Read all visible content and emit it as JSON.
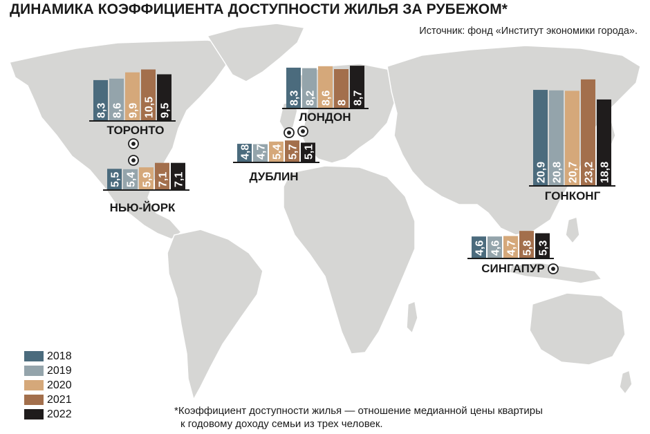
{
  "header": {
    "title": "ДИНАМИКА КОЭФФИЦИЕНТА ДОСТУПНОСТИ ЖИЛЬЯ ЗА РУБЕЖОМ*",
    "source": "Источник: фонд «Институт экономики города»."
  },
  "footnote": {
    "line1": "*Коэффициент доступности жилья — отношение медианной цены квартиры",
    "line2": "к годовому доходу семьи из трех человек."
  },
  "colors": {
    "2018": "#4b6b7d",
    "2019": "#94a4ab",
    "2020": "#d5a87a",
    "2021": "#a36f4c",
    "2022": "#1f1c1c",
    "map_land": "#d6d6d4",
    "map_border": "#ffffff",
    "marker": "#222222"
  },
  "legend": [
    {
      "year": "2018"
    },
    {
      "year": "2019"
    },
    {
      "year": "2020"
    },
    {
      "year": "2021"
    },
    {
      "year": "2022"
    }
  ],
  "chart_data": {
    "type": "bar",
    "series_names": [
      "2018",
      "2019",
      "2020",
      "2021",
      "2022"
    ],
    "cities": [
      {
        "name": "ТОРОНТО",
        "values": [
          8.3,
          8.6,
          9.9,
          10.5,
          9.5
        ],
        "labels": [
          "8,3",
          "8,6",
          "9,9",
          "10,5",
          "9,5"
        ]
      },
      {
        "name": "НЬЮ-ЙОРК",
        "values": [
          5.5,
          5.4,
          5.9,
          7.1,
          7.1
        ],
        "labels": [
          "5,5",
          "5,4",
          "5,9",
          "7,1",
          "7,1"
        ]
      },
      {
        "name": "ЛОНДОН",
        "values": [
          8.3,
          8.2,
          8.6,
          8,
          8.7
        ],
        "labels": [
          "8,3",
          "8,2",
          "8,6",
          "8",
          "8,7"
        ]
      },
      {
        "name": "ДУБЛИН",
        "values": [
          4.8,
          4.7,
          5.4,
          5.7,
          5.1
        ],
        "labels": [
          "4,8",
          "4,7",
          "5,4",
          "5,7",
          "5,1"
        ]
      },
      {
        "name": "ГОНКОНГ",
        "values": [
          20.9,
          20.8,
          20.7,
          23.2,
          18.8
        ],
        "labels": [
          "20,9",
          "20,8",
          "20,7",
          "23,2",
          "18,8"
        ]
      },
      {
        "name": "СИНГАПУР",
        "values": [
          4.6,
          4.6,
          4.7,
          5.8,
          5.3
        ],
        "labels": [
          "4,6",
          "4,6",
          "4,7",
          "5,8",
          "5,3"
        ]
      }
    ]
  }
}
